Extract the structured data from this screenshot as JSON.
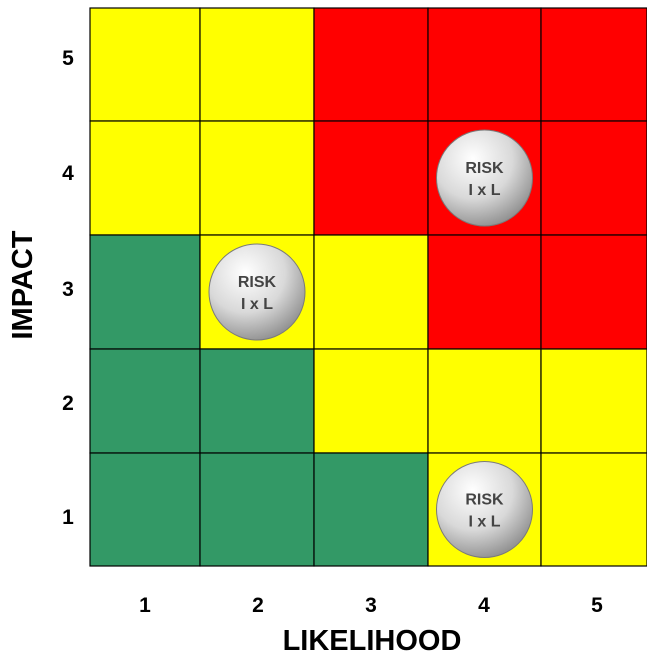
{
  "x_axis": {
    "title": "LIKELIHOOD",
    "ticks": [
      "1",
      "2",
      "3",
      "4",
      "5"
    ]
  },
  "y_axis": {
    "title": "IMPACT",
    "ticks": [
      "1",
      "2",
      "3",
      "4",
      "5"
    ]
  },
  "colors": {
    "green": "#339966",
    "yellow": "#ffff00",
    "red": "#ff0000",
    "grid_line": "#000000",
    "marker_fill": "#d8d8d8"
  },
  "grid": {
    "rows_top_to_bottom": [
      {
        "impact": 5,
        "cells": [
          "yellow",
          "yellow",
          "red",
          "red",
          "red"
        ]
      },
      {
        "impact": 4,
        "cells": [
          "yellow",
          "yellow",
          "red",
          "red",
          "red"
        ]
      },
      {
        "impact": 3,
        "cells": [
          "green",
          "yellow",
          "yellow",
          "red",
          "red"
        ]
      },
      {
        "impact": 2,
        "cells": [
          "green",
          "green",
          "yellow",
          "yellow",
          "yellow"
        ]
      },
      {
        "impact": 1,
        "cells": [
          "green",
          "green",
          "green",
          "yellow",
          "yellow"
        ]
      }
    ]
  },
  "risk_markers": [
    {
      "likelihood": 4,
      "impact": 4,
      "line1": "RISK",
      "line2": "I x L"
    },
    {
      "likelihood": 2,
      "impact": 3,
      "line1": "RISK",
      "line2": "I x L"
    },
    {
      "likelihood": 4,
      "impact": 1,
      "line1": "RISK",
      "line2": "I x L"
    }
  ]
}
